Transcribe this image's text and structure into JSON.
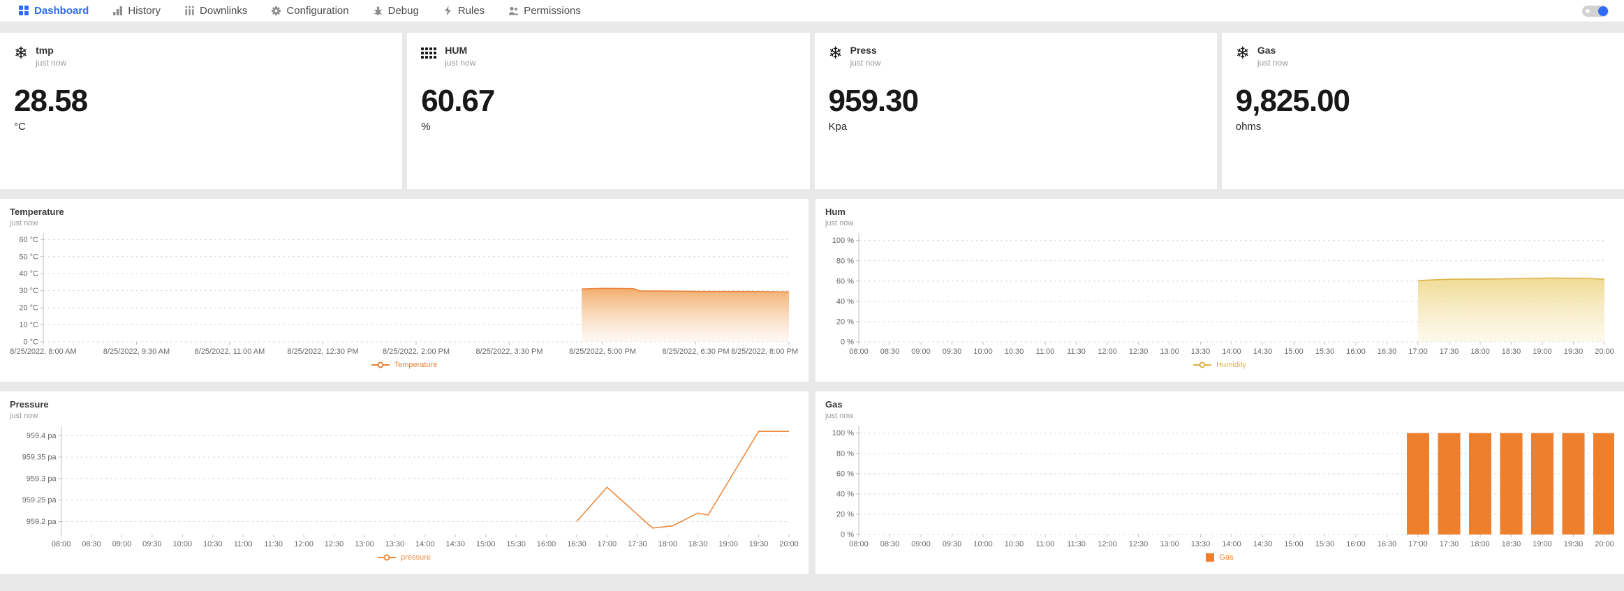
{
  "nav": {
    "accent_color": "#2e6bf6",
    "tabs": [
      {
        "label": "Dashboard",
        "icon": "dashboard-grid-icon",
        "active": true
      },
      {
        "label": "History",
        "icon": "history-bars-icon",
        "active": false
      },
      {
        "label": "Downlinks",
        "icon": "downlinks-bars-icon",
        "active": false
      },
      {
        "label": "Configuration",
        "icon": "gear-icon",
        "active": false
      },
      {
        "label": "Debug",
        "icon": "bug-icon",
        "active": false
      },
      {
        "label": "Rules",
        "icon": "rules-bolt-icon",
        "active": false
      },
      {
        "label": "Permissions",
        "icon": "people-icon",
        "active": false
      }
    ],
    "toggle_state": "off"
  },
  "cards": [
    {
      "title": "tmp",
      "subtitle": "just now",
      "value": "28.58",
      "unit": "°C",
      "icon": "snowflake-icon"
    },
    {
      "title": "HUM",
      "subtitle": "just now",
      "value": "60.67",
      "unit": "%",
      "icon": "dot-matrix-icon"
    },
    {
      "title": "Press",
      "subtitle": "just now",
      "value": "959.30",
      "unit": "Kpa",
      "icon": "snowflake-icon"
    },
    {
      "title": "Gas",
      "subtitle": "just now",
      "value": "9,825.00",
      "unit": "ohms",
      "icon": "snowflake-icon"
    }
  ],
  "chart_data": [
    {
      "type": "area",
      "title": "Temperature",
      "subtitle": "just now",
      "legend_label": "Temperature",
      "legend_marker": "line-dot",
      "color": "#e8823a",
      "fill_top": "#f2a964",
      "fill_bottom": "#fdf4ec",
      "x_domain": [
        "08:00",
        "20:00"
      ],
      "x_ticks": [
        "8/25/2022, 8:00 AM",
        "8/25/2022, 9:30 AM",
        "8/25/2022, 11:00 AM",
        "8/25/2022, 12:30 PM",
        "8/25/2022, 2:00 PM",
        "8/25/2022, 3:30 PM",
        "8/25/2022, 5:00 PM",
        "8/25/2022, 6:30 PM",
        "8/25/2022, 8:00 PM"
      ],
      "y_tick_labels": [
        "0 °C",
        "10 °C",
        "20 °C",
        "30 °C",
        "40 °C",
        "50 °C",
        "60 °C"
      ],
      "y_tick_values": [
        0,
        10,
        20,
        30,
        40,
        50,
        60
      ],
      "ylim": [
        0,
        63
      ],
      "points": [
        [
          "16:40",
          31.0
        ],
        [
          "17:00",
          31.4
        ],
        [
          "17:20",
          31.3
        ],
        [
          "17:30",
          31.2
        ],
        [
          "17:36",
          29.9
        ],
        [
          "18:00",
          29.8
        ],
        [
          "18:40",
          29.6
        ],
        [
          "19:20",
          29.6
        ],
        [
          "20:00",
          29.3
        ]
      ]
    },
    {
      "type": "area",
      "title": "Hum",
      "subtitle": "just now",
      "legend_label": "Humidity",
      "legend_marker": "line-dot",
      "color": "#ddb24a",
      "fill_top": "#efd98e",
      "fill_bottom": "#fbf4dd",
      "x_domain": [
        "08:00",
        "20:00"
      ],
      "x_ticks": [
        "08:00",
        "08:30",
        "09:00",
        "09:30",
        "10:00",
        "10:30",
        "11:00",
        "11:30",
        "12:00",
        "12:30",
        "13:00",
        "13:30",
        "14:00",
        "14:30",
        "15:00",
        "15:30",
        "16:00",
        "16:30",
        "17:00",
        "17:30",
        "18:00",
        "18:30",
        "19:00",
        "19:30",
        "20:00"
      ],
      "y_tick_labels": [
        "0 %",
        "20 %",
        "40 %",
        "60 %",
        "80 %",
        "100 %"
      ],
      "y_tick_values": [
        0,
        20,
        40,
        60,
        80,
        100
      ],
      "ylim": [
        0,
        106
      ],
      "points": [
        [
          "17:00",
          60.5
        ],
        [
          "17:20",
          61.5
        ],
        [
          "17:40",
          62
        ],
        [
          "18:10",
          62
        ],
        [
          "18:40",
          62.5
        ],
        [
          "19:10",
          63
        ],
        [
          "19:40",
          62.8
        ],
        [
          "20:00",
          61.8
        ]
      ]
    },
    {
      "type": "line",
      "title": "Pressure",
      "subtitle": "just now",
      "legend_label": "pressure",
      "legend_marker": "line-dot",
      "color": "#ec8a3e",
      "x_domain": [
        "08:00",
        "20:00"
      ],
      "x_ticks": [
        "08:00",
        "08:30",
        "09:00",
        "09:30",
        "10:00",
        "10:30",
        "11:00",
        "11:30",
        "12:00",
        "12:30",
        "13:00",
        "13:30",
        "14:00",
        "14:30",
        "15:00",
        "15:30",
        "16:00",
        "16:30",
        "17:00",
        "17:30",
        "18:00",
        "18:30",
        "19:00",
        "19:30",
        "20:00"
      ],
      "y_tick_labels": [
        "959.2 pa",
        "959.25 pa",
        "959.3 pa",
        "959.35 pa",
        "959.4 pa"
      ],
      "y_tick_values": [
        959.2,
        959.25,
        959.3,
        959.35,
        959.4
      ],
      "ylim": [
        959.17,
        959.42
      ],
      "points": [
        [
          "16:30",
          959.2
        ],
        [
          "17:00",
          959.28
        ],
        [
          "17:45",
          959.185
        ],
        [
          "18:05",
          959.19
        ],
        [
          "18:30",
          959.22
        ],
        [
          "18:40",
          959.215
        ],
        [
          "19:30",
          959.41
        ],
        [
          "20:00",
          959.41
        ]
      ]
    },
    {
      "type": "bar",
      "title": "Gas",
      "subtitle": "just now",
      "legend_label": "Gas",
      "legend_marker": "square",
      "color": "#ee7f2c",
      "bar_slot_minutes": 30,
      "x_domain": [
        "08:00",
        "20:00"
      ],
      "x_ticks": [
        "08:00",
        "08:30",
        "09:00",
        "09:30",
        "10:00",
        "10:30",
        "11:00",
        "11:30",
        "12:00",
        "12:30",
        "13:00",
        "13:30",
        "14:00",
        "14:30",
        "15:00",
        "15:30",
        "16:00",
        "16:30",
        "17:00",
        "17:30",
        "18:00",
        "18:30",
        "19:00",
        "19:30",
        "20:00"
      ],
      "y_tick_labels": [
        "0 %",
        "20 %",
        "40 %",
        "60 %",
        "80 %",
        "100 %"
      ],
      "y_tick_values": [
        0,
        20,
        40,
        60,
        80,
        100
      ],
      "ylim": [
        0,
        106
      ],
      "points": [
        [
          "17:00",
          100
        ],
        [
          "17:30",
          100
        ],
        [
          "18:00",
          100
        ],
        [
          "18:30",
          100
        ],
        [
          "19:00",
          100
        ],
        [
          "19:30",
          100
        ],
        [
          "20:00",
          100
        ]
      ]
    }
  ]
}
